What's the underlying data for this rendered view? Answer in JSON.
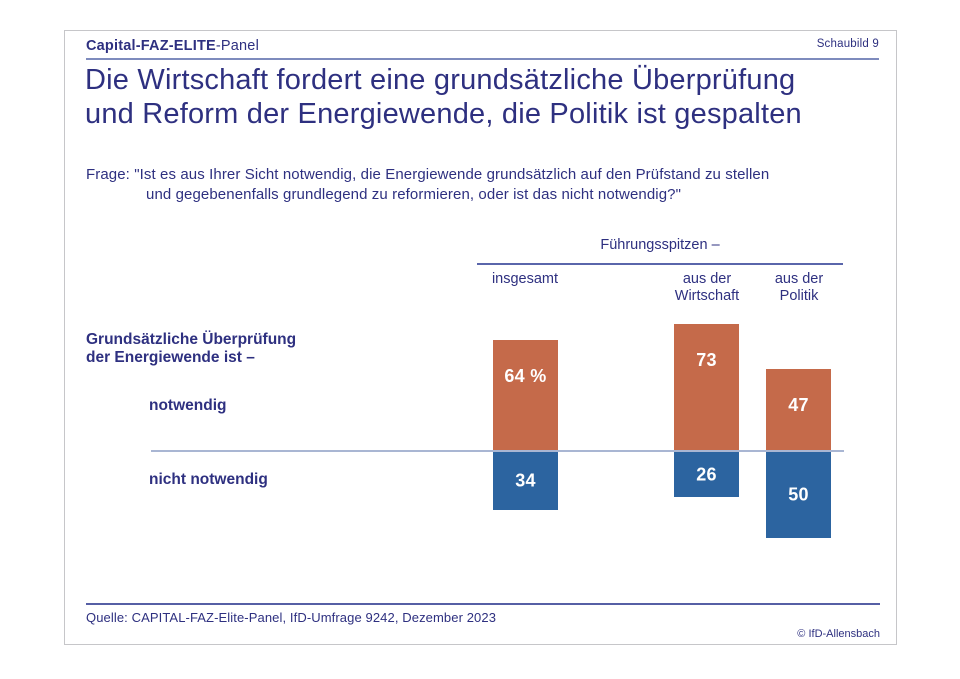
{
  "header": {
    "panel_title_bold": "Capital-FAZ-ELITE",
    "panel_title_regular": "-Panel",
    "slide_label": "Schaubild 9"
  },
  "title": {
    "line1": "Die Wirtschaft fordert eine grundsätzliche Überprüfung",
    "line2": "und Reform der Energiewende, die Politik ist gespalten"
  },
  "question": {
    "line1": "Frage: \"Ist es aus Ihrer Sicht notwendig, die Energiewende grundsätzlich auf den Prüfstand zu stellen",
    "line2": "und gegebenenfalls grundlegend zu reformieren, oder ist das nicht notwendig?\""
  },
  "chart_data": {
    "type": "bar",
    "orientation": "diverging-vertical",
    "group_header": "Führungsspitzen –",
    "categories": [
      "insgesamt",
      "aus der\nWirtschaft",
      "aus der\nPolitik"
    ],
    "row_caption": "Grundsätzliche Überprüfung\nder Energiewende ist –",
    "unit": "percent",
    "baseline_value": 0,
    "series": [
      {
        "name": "notwendig",
        "direction": "up",
        "color": "#c56a4a",
        "values": [
          64,
          73,
          47
        ],
        "labels": [
          "64 %",
          "73",
          "47"
        ]
      },
      {
        "name": "nicht notwendig",
        "direction": "down",
        "color": "#2c64a0",
        "values": [
          34,
          26,
          50
        ],
        "labels": [
          "34",
          "26",
          "50"
        ]
      }
    ]
  },
  "footer": {
    "source": "Quelle: CAPITAL-FAZ-Elite-Panel, IfD-Umfrage 9242, Dezember 2023",
    "copyright": "© IfD-Allensbach"
  },
  "colors": {
    "text_navy": "#2e3080",
    "bar_orange": "#c56a4a",
    "bar_blue": "#2c64a0",
    "baseline_line": "#a9b6d3",
    "rule_blue": "#5a66ab"
  }
}
